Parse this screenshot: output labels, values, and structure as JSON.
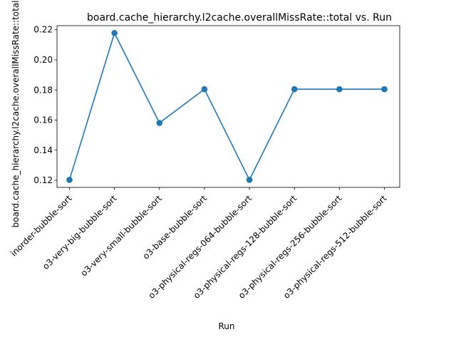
{
  "chart_data": {
    "type": "line",
    "title": "board.cache_hierarchy.l2cache.overallMissRate::total vs. Run",
    "xlabel": "Run",
    "ylabel": "board.cache_hierarchy.l2cache.overallMissRate::total",
    "categories": [
      "inorder-bubble-sort",
      "o3-very-big-bubble-sort",
      "o3-very-small-bubble-sort",
      "o3-base-bubble-sort",
      "o3-physical-regs-064-bubble-sort",
      "o3-physical-regs-128-bubble-sort",
      "o3-physical-regs-256-bubble-sort",
      "o3-physical-regs-512-bubble-sort"
    ],
    "series": [
      {
        "values": [
          0.1203,
          0.2178,
          0.1581,
          0.1805,
          0.1203,
          0.1805,
          0.1805,
          0.1805
        ],
        "color": "#1f77b4",
        "marker": "circle"
      }
    ],
    "yticks": [
      0.12,
      0.14,
      0.16,
      0.18,
      0.2,
      0.22
    ],
    "yticklabels": [
      "0.12",
      "0.14",
      "0.16",
      "0.18",
      "0.20",
      "0.22"
    ],
    "ylim": [
      0.1153,
      0.2227
    ],
    "grid": false,
    "legend": "none"
  }
}
